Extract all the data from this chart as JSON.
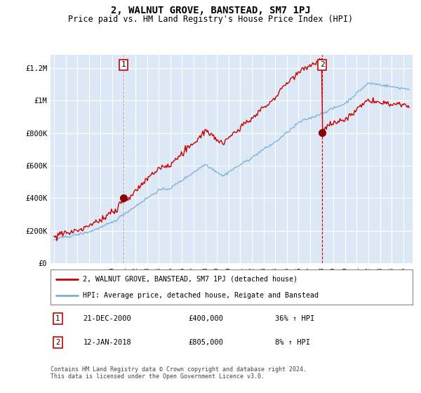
{
  "title": "2, WALNUT GROVE, BANSTEAD, SM7 1PJ",
  "subtitle": "Price paid vs. HM Land Registry's House Price Index (HPI)",
  "title_fontsize": 10,
  "subtitle_fontsize": 8.5,
  "background_color": "#ffffff",
  "plot_bg_color": "#dce8f5",
  "ylabel_ticks": [
    "£0",
    "£200K",
    "£400K",
    "£600K",
    "£800K",
    "£1M",
    "£1.2M"
  ],
  "ytick_values": [
    0,
    200000,
    400000,
    600000,
    800000,
    1000000,
    1200000
  ],
  "ylim": [
    0,
    1280000
  ],
  "xlim_start": 1994.7,
  "xlim_end": 2025.8,
  "sale1_x": 2000.97,
  "sale1_y": 400000,
  "sale1_label": "1",
  "sale2_x": 2018.04,
  "sale2_y": 805000,
  "sale2_label": "2",
  "house_line_color": "#cc0000",
  "hpi_line_color": "#7dadd4",
  "legend_label1": "2, WALNUT GROVE, BANSTEAD, SM7 1PJ (detached house)",
  "legend_label2": "HPI: Average price, detached house, Reigate and Banstead",
  "info1_num": "1",
  "info1_date": "21-DEC-2000",
  "info1_price": "£400,000",
  "info1_hpi": "36% ↑ HPI",
  "info2_num": "2",
  "info2_date": "12-JAN-2018",
  "info2_price": "£805,000",
  "info2_hpi": "8% ↑ HPI",
  "footer": "Contains HM Land Registry data © Crown copyright and database right 2024.\nThis data is licensed under the Open Government Licence v3.0."
}
